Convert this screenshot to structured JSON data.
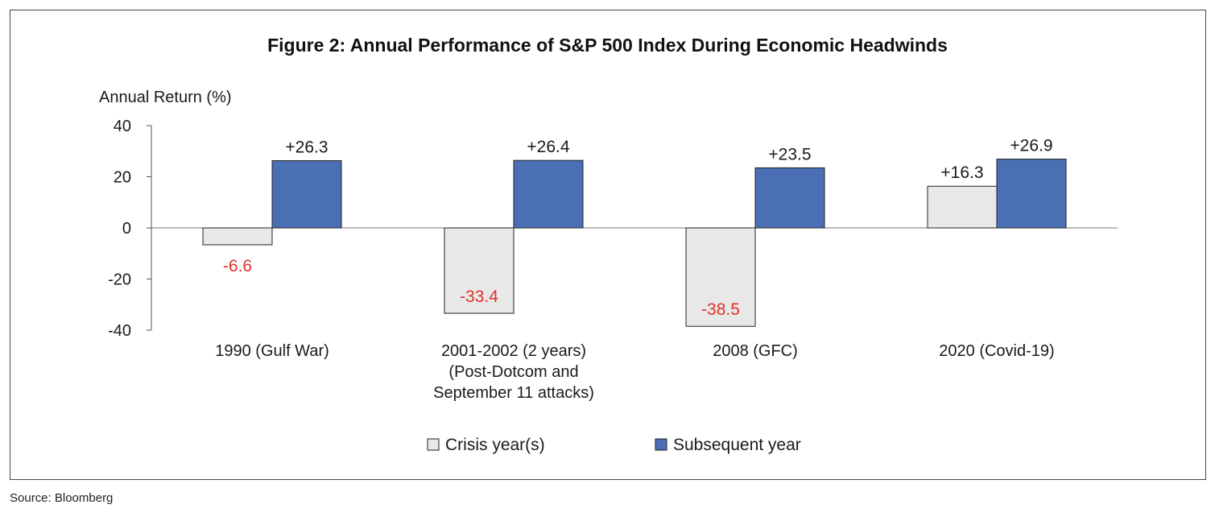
{
  "chart_data": {
    "type": "bar",
    "title": "Figure 2: Annual Performance of S&P 500 Index During Economic Headwinds",
    "ylabel": "Annual Return (%)",
    "ylim": [
      -40,
      40
    ],
    "yticks": [
      "40",
      "20",
      "0",
      "-20",
      "-40"
    ],
    "ytick_values": [
      40,
      20,
      0,
      -20,
      -40
    ],
    "categories": [
      [
        "1990 (Gulf War)"
      ],
      [
        "2001-2002 (2 years)",
        "(Post-Dotcom and",
        "September 11 attacks)"
      ],
      [
        "2008 (GFC)"
      ],
      [
        "2020 (Covid-19)"
      ]
    ],
    "series": [
      {
        "name": "Crisis year(s)",
        "values": [
          -6.6,
          -33.4,
          -38.5,
          16.3
        ],
        "labels": [
          "-6.6",
          "-33.4",
          "-38.5",
          "+16.3"
        ],
        "color": "#e8e8e8"
      },
      {
        "name": "Subsequent year",
        "values": [
          26.3,
          26.4,
          23.5,
          26.9
        ],
        "labels": [
          "+26.3",
          "+26.4",
          "+23.5",
          "+26.9"
        ],
        "color": "#4a6fb5"
      }
    ],
    "negative_label_color": "#e0312b",
    "legend_position": "bottom-center",
    "grid": false
  },
  "source": "Source: Bloomberg"
}
